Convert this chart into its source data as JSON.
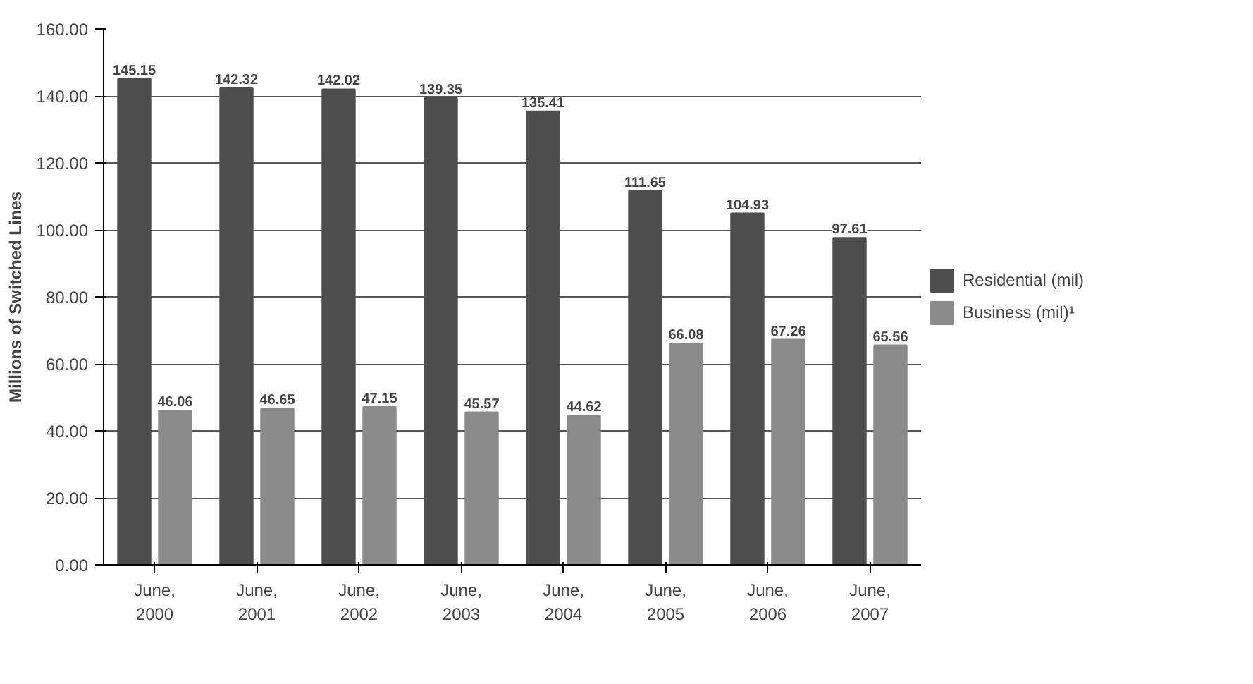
{
  "chart_data": {
    "type": "bar",
    "ylabel": "Millions of Switched Lines",
    "categories": [
      "June, 2000",
      "June, 2001",
      "June, 2002",
      "June, 2003",
      "June, 2004",
      "June, 2005",
      "June, 2006",
      "June, 2007"
    ],
    "series": [
      {
        "name": "Residential (mil)",
        "color": "#4d4d4d",
        "values": [
          145.15,
          142.32,
          142.02,
          139.35,
          135.41,
          111.65,
          104.93,
          97.61
        ]
      },
      {
        "name": "Business (mil)¹",
        "color": "#8a8a8a",
        "values": [
          46.06,
          46.65,
          47.15,
          45.57,
          44.62,
          66.08,
          67.26,
          65.56
        ]
      }
    ],
    "ylim": [
      0,
      160
    ],
    "yticks": [
      {
        "value": 0,
        "label": "0.00"
      },
      {
        "value": 20,
        "label": "20.00"
      },
      {
        "value": 40,
        "label": "40.00"
      },
      {
        "value": 60,
        "label": "60.00"
      },
      {
        "value": 80,
        "label": "80.00"
      },
      {
        "value": 100,
        "label": "100.00"
      },
      {
        "value": 120,
        "label": "120.00"
      },
      {
        "value": 140,
        "label": "140.00"
      },
      {
        "value": 160,
        "label": "160.00"
      }
    ],
    "grid": "y",
    "legend": "right",
    "data_labels": true
  }
}
